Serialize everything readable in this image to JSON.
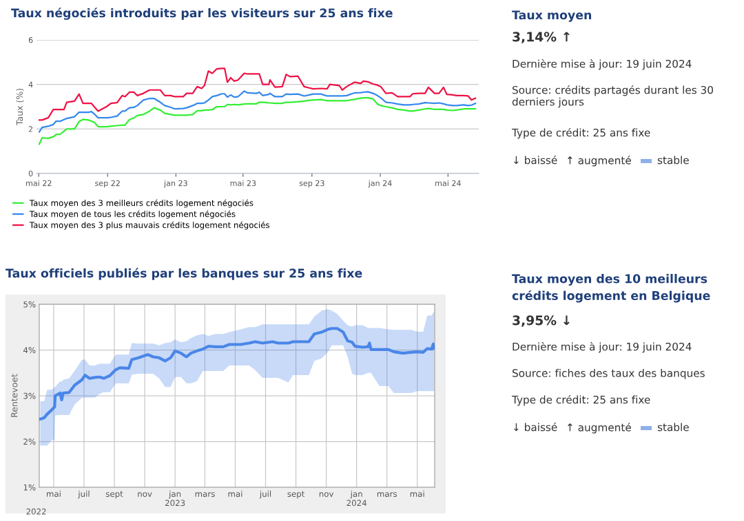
{
  "chart_data": [
    {
      "type": "line",
      "title": "Taux négociés introduits par les visiteurs sur 25 ans fixe",
      "ylabel": "Taux (%)",
      "x": [
        "2022-05-02",
        "2022-05-07",
        "2022-05-18",
        "2022-05-27",
        "2022-06-01",
        "2022-06-09",
        "2022-06-15",
        "2022-06-20",
        "2022-07-04",
        "2022-07-12",
        "2022-07-19",
        "2022-07-29",
        "2022-08-03",
        "2022-08-08",
        "2022-08-15",
        "2022-08-30",
        "2022-09-07",
        "2022-09-18",
        "2022-09-27",
        "2022-10-02",
        "2022-10-10",
        "2022-10-18",
        "2022-10-24",
        "2022-11-04",
        "2022-11-15",
        "2022-11-23",
        "2022-12-04",
        "2022-12-12",
        "2022-12-23",
        "2022-12-30",
        "2023-01-14",
        "2023-01-20",
        "2023-01-31",
        "2023-02-08",
        "2023-02-16",
        "2023-02-21",
        "2023-02-28",
        "2023-03-07",
        "2023-03-15",
        "2023-03-24",
        "2023-03-29",
        "2023-04-03",
        "2023-04-09",
        "2023-04-15",
        "2023-04-22",
        "2023-05-03",
        "2023-05-09",
        "2023-05-25",
        "2023-05-30",
        "2023-06-05",
        "2023-06-16",
        "2023-06-18",
        "2023-06-27",
        "2023-07-10",
        "2023-07-17",
        "2023-07-24",
        "2023-08-07",
        "2023-08-18",
        "2023-08-26",
        "2023-09-03",
        "2023-09-17",
        "2023-09-28",
        "2023-10-03",
        "2023-10-20",
        "2023-10-25",
        "2023-11-02",
        "2023-11-16",
        "2023-11-27",
        "2023-12-02",
        "2023-12-10",
        "2023-12-19",
        "2023-12-27",
        "2024-01-02",
        "2024-01-11",
        "2024-01-22",
        "2024-02-01",
        "2024-02-12",
        "2024-02-23",
        "2024-02-28",
        "2024-03-10",
        "2024-03-21",
        "2024-03-27",
        "2024-04-07",
        "2024-04-15",
        "2024-04-23",
        "2024-04-29",
        "2024-05-10",
        "2024-05-16",
        "2024-05-29",
        "2024-06-06",
        "2024-06-12",
        "2024-06-19"
      ],
      "series": [
        {
          "name": "Taux moyen des 3 meilleurs crédits logement négociés",
          "color": "#33ee33",
          "values": [
            1.32,
            1.6,
            1.58,
            1.65,
            1.75,
            1.77,
            1.9,
            2.0,
            2.0,
            2.33,
            2.43,
            2.4,
            2.35,
            2.3,
            2.1,
            2.1,
            2.12,
            2.15,
            2.17,
            2.17,
            2.42,
            2.5,
            2.6,
            2.65,
            2.8,
            2.95,
            2.85,
            2.7,
            2.65,
            2.62,
            2.62,
            2.62,
            2.65,
            2.82,
            2.82,
            2.85,
            2.85,
            2.87,
            3.0,
            3.0,
            3.0,
            3.1,
            3.08,
            3.1,
            3.08,
            3.12,
            3.13,
            3.13,
            3.2,
            3.2,
            3.17,
            3.17,
            3.15,
            3.15,
            3.2,
            3.2,
            3.22,
            3.25,
            3.28,
            3.3,
            3.32,
            3.27,
            3.27,
            3.27,
            3.27,
            3.27,
            3.33,
            3.38,
            3.4,
            3.4,
            3.35,
            3.12,
            3.05,
            3.0,
            2.95,
            2.88,
            2.85,
            2.8,
            2.8,
            2.85,
            2.9,
            2.92,
            2.88,
            2.88,
            2.88,
            2.85,
            2.83,
            2.85,
            2.9,
            2.9,
            2.9,
            2.9
          ]
        },
        {
          "name": "Taux moyen de tous les crédits logement négociés",
          "color": "#3388ee",
          "values": [
            1.87,
            2.07,
            2.12,
            2.2,
            2.35,
            2.35,
            2.42,
            2.47,
            2.55,
            2.75,
            2.75,
            2.75,
            2.78,
            2.68,
            2.5,
            2.5,
            2.52,
            2.58,
            2.8,
            2.8,
            2.95,
            2.97,
            3.05,
            3.3,
            3.37,
            3.37,
            3.2,
            3.05,
            2.97,
            2.9,
            2.92,
            2.95,
            3.05,
            3.15,
            3.15,
            3.17,
            3.3,
            3.45,
            3.5,
            3.58,
            3.58,
            3.43,
            3.53,
            3.43,
            3.45,
            3.7,
            3.62,
            3.6,
            3.65,
            3.5,
            3.55,
            3.6,
            3.45,
            3.45,
            3.57,
            3.55,
            3.57,
            3.48,
            3.52,
            3.57,
            3.57,
            3.48,
            3.48,
            3.48,
            3.48,
            3.5,
            3.62,
            3.63,
            3.65,
            3.67,
            3.6,
            3.5,
            3.4,
            3.2,
            3.17,
            3.12,
            3.08,
            3.08,
            3.1,
            3.12,
            3.18,
            3.17,
            3.15,
            3.17,
            3.13,
            3.08,
            3.05,
            3.05,
            3.08,
            3.05,
            3.07,
            3.15
          ]
        },
        {
          "name": "Taux moyen des 3 plus mauvais crédits logement négociés",
          "color": "#ee1144",
          "values": [
            2.4,
            2.4,
            2.5,
            2.87,
            2.87,
            2.87,
            2.87,
            3.2,
            3.25,
            3.57,
            3.15,
            3.15,
            3.15,
            3.0,
            2.8,
            3.0,
            3.15,
            3.18,
            3.5,
            3.45,
            3.65,
            3.65,
            3.5,
            3.6,
            3.75,
            3.75,
            3.75,
            3.5,
            3.5,
            3.45,
            3.45,
            3.6,
            3.6,
            3.9,
            3.82,
            3.95,
            4.6,
            4.5,
            4.7,
            4.72,
            4.72,
            4.1,
            4.3,
            4.15,
            4.2,
            4.5,
            4.47,
            4.47,
            4.47,
            4.0,
            4.0,
            4.2,
            3.88,
            3.9,
            4.45,
            4.35,
            4.37,
            3.9,
            3.85,
            3.8,
            3.82,
            3.8,
            4.0,
            3.95,
            3.75,
            3.9,
            4.1,
            4.05,
            4.15,
            4.12,
            4.02,
            3.97,
            3.9,
            3.6,
            3.62,
            3.45,
            3.45,
            3.45,
            3.58,
            3.6,
            3.6,
            3.87,
            3.6,
            3.6,
            3.87,
            3.55,
            3.53,
            3.5,
            3.5,
            3.48,
            3.3,
            3.38
          ]
        }
      ],
      "xlim": [
        "2022-04-27",
        "2024-06-25"
      ],
      "xticks": [
        {
          "value": "2022-05-01",
          "label": "mai 22"
        },
        {
          "value": "2022-09-01",
          "label": "sep 22"
        },
        {
          "value": "2023-01-01",
          "label": "jan 23"
        },
        {
          "value": "2023-05-01",
          "label": "mai 23"
        },
        {
          "value": "2023-09-01",
          "label": "sep 23"
        },
        {
          "value": "2024-01-01",
          "label": "jan 24"
        },
        {
          "value": "2024-05-01",
          "label": "mai 24"
        }
      ],
      "ylim": [
        0,
        6
      ],
      "yticks": [
        0,
        2,
        4,
        6
      ],
      "grid": "y",
      "legend": "bottom"
    },
    {
      "type": "other",
      "title": "Taux moyen",
      "annotations": [
        "3,14% ↑",
        "Dernière mise à jour: 19 juin 2024",
        "Source: crédits partagés durant les 30 derniers jours",
        "Type de crédit: 25 ans fixe",
        "↓ baissé",
        "↑ augmenté",
        "stable"
      ]
    },
    {
      "type": "line",
      "title": "Taux officiels publiés par les banques sur 25 ans fixe",
      "ylabel": "Rentevoet",
      "series": [
        {
          "color": "#4a86e8",
          "x": [
            "2022-04-19",
            "2022-04-27",
            "2022-05-03",
            "2022-05-12",
            "2022-05-18",
            "2022-05-19",
            "2022-05-29",
            "2022-06-01",
            "2022-06-04",
            "2022-06-16",
            "2022-06-27",
            "2022-07-12",
            "2022-07-18",
            "2022-07-27",
            "2022-08-07",
            "2022-08-16",
            "2022-08-25",
            "2022-09-06",
            "2022-09-18",
            "2022-09-26",
            "2022-10-14",
            "2022-10-20",
            "2022-11-03",
            "2022-11-21",
            "2022-12-02",
            "2022-12-14",
            "2022-12-26",
            "2023-01-06",
            "2023-01-15",
            "2023-01-27",
            "2023-02-07",
            "2023-02-16",
            "2023-02-28",
            "2023-03-12",
            "2023-03-23",
            "2023-04-07",
            "2023-04-22",
            "2023-05-04",
            "2023-05-27",
            "2023-06-13",
            "2023-06-25",
            "2023-07-10",
            "2023-07-30",
            "2023-08-10",
            "2023-08-31",
            "2023-09-09",
            "2023-10-11",
            "2023-10-22",
            "2023-11-06",
            "2023-11-18",
            "2023-11-26",
            "2023-12-07",
            "2023-12-19",
            "2023-12-28",
            "2024-01-06",
            "2024-01-12",
            "2024-01-27",
            "2024-02-07",
            "2024-02-10",
            "2024-02-13",
            "2024-03-01",
            "2024-03-19",
            "2024-03-30",
            "2024-04-17",
            "2024-05-04",
            "2024-05-16",
            "2024-05-28",
            "2024-06-05",
            "2024-06-14",
            "2024-06-17",
            "2024-06-19"
          ],
          "values": [
            2.49,
            2.52,
            2.6,
            2.69,
            2.76,
            3.0,
            3.06,
            2.91,
            3.06,
            3.07,
            3.23,
            3.35,
            3.45,
            3.38,
            3.4,
            3.41,
            3.38,
            3.44,
            3.57,
            3.61,
            3.6,
            3.79,
            3.83,
            3.9,
            3.85,
            3.83,
            3.76,
            3.83,
            3.98,
            3.93,
            3.85,
            3.93,
            3.98,
            4.02,
            4.08,
            4.07,
            4.07,
            4.12,
            4.12,
            4.15,
            4.18,
            4.15,
            4.18,
            4.15,
            4.15,
            4.18,
            4.18,
            4.35,
            4.39,
            4.45,
            4.47,
            4.47,
            4.39,
            4.2,
            4.17,
            4.08,
            4.06,
            4.07,
            4.15,
            4.01,
            4.01,
            4.01,
            3.96,
            3.93,
            3.95,
            3.96,
            3.95,
            4.03,
            4.02,
            4.13,
            4.04
          ],
          "lower": [
            1.91,
            1.91,
            1.91,
            2.03,
            2.03,
            2.57,
            2.58,
            2.58,
            2.58,
            2.58,
            2.81,
            2.96,
            2.96,
            2.96,
            2.96,
            3.04,
            3.08,
            3.08,
            3.27,
            3.27,
            3.27,
            3.46,
            3.48,
            3.48,
            3.48,
            3.38,
            3.19,
            3.19,
            3.41,
            3.41,
            3.27,
            3.27,
            3.32,
            3.54,
            3.54,
            3.54,
            3.54,
            3.66,
            3.66,
            3.66,
            3.56,
            3.39,
            3.39,
            3.39,
            3.29,
            3.45,
            3.45,
            3.76,
            3.82,
            3.95,
            4.1,
            4.1,
            4.1,
            3.85,
            3.48,
            3.45,
            3.45,
            3.5,
            3.5,
            3.5,
            3.21,
            3.21,
            3.06,
            3.06,
            3.06,
            3.1,
            3.1,
            3.1,
            3.1,
            3.1,
            3.1
          ],
          "upper": [
            2.88,
            2.88,
            3.13,
            3.13,
            3.19,
            3.19,
            3.32,
            3.3,
            3.35,
            3.38,
            3.54,
            3.79,
            3.79,
            3.66,
            3.66,
            3.7,
            3.7,
            3.7,
            3.9,
            3.9,
            3.9,
            4.15,
            4.14,
            4.14,
            4.14,
            4.1,
            4.15,
            4.17,
            4.23,
            4.17,
            4.19,
            4.26,
            4.32,
            4.35,
            4.31,
            4.35,
            4.35,
            4.39,
            4.45,
            4.5,
            4.5,
            4.56,
            4.56,
            4.56,
            4.56,
            4.56,
            4.56,
            4.73,
            4.86,
            4.89,
            4.86,
            4.79,
            4.64,
            4.54,
            4.51,
            4.54,
            4.54,
            4.48,
            4.48,
            4.48,
            4.48,
            4.45,
            4.44,
            4.44,
            4.44,
            4.4,
            4.4,
            4.75,
            4.75,
            4.82,
            4.83
          ]
        }
      ],
      "xlim": [
        "2022-04-17",
        "2024-06-20"
      ],
      "annotations": [
        "2022"
      ],
      "xticks": [
        {
          "value": "2022-05-16",
          "label": "mai"
        },
        {
          "value": "2022-07-16",
          "label": "juil"
        },
        {
          "value": "2022-09-15",
          "label": "sept"
        },
        {
          "value": "2022-11-15",
          "label": "nov"
        },
        {
          "value": "2023-01-15",
          "label": "jan\n2023"
        },
        {
          "value": "2023-03-16",
          "label": "mars"
        },
        {
          "value": "2023-05-16",
          "label": "mai"
        },
        {
          "value": "2023-07-16",
          "label": "juil"
        },
        {
          "value": "2023-09-15",
          "label": "sept"
        },
        {
          "value": "2023-11-15",
          "label": "nov"
        },
        {
          "value": "2024-01-15",
          "label": "jan\n2024"
        },
        {
          "value": "2024-03-16",
          "label": "mars"
        },
        {
          "value": "2024-05-16",
          "label": "mai"
        }
      ],
      "ylim": [
        1,
        5
      ],
      "yticks": [
        {
          "value": 1,
          "label": "1%"
        },
        {
          "value": 2,
          "label": "2%"
        },
        {
          "value": 3,
          "label": "3%"
        },
        {
          "value": 4,
          "label": "4%"
        },
        {
          "value": 5,
          "label": "5%"
        }
      ],
      "grid": true
    },
    {
      "type": "other",
      "title": "Taux moyen des 10 meilleurs crédits logement en Belgique",
      "annotations": [
        "3,95% ↓",
        "Dernière mise à jour: 19 juin 2024",
        "Source: fiches des taux des banques",
        "Type de crédit: 25 ans fixe",
        "↓ baissé",
        "↑ augmenté",
        "stable"
      ]
    }
  ]
}
